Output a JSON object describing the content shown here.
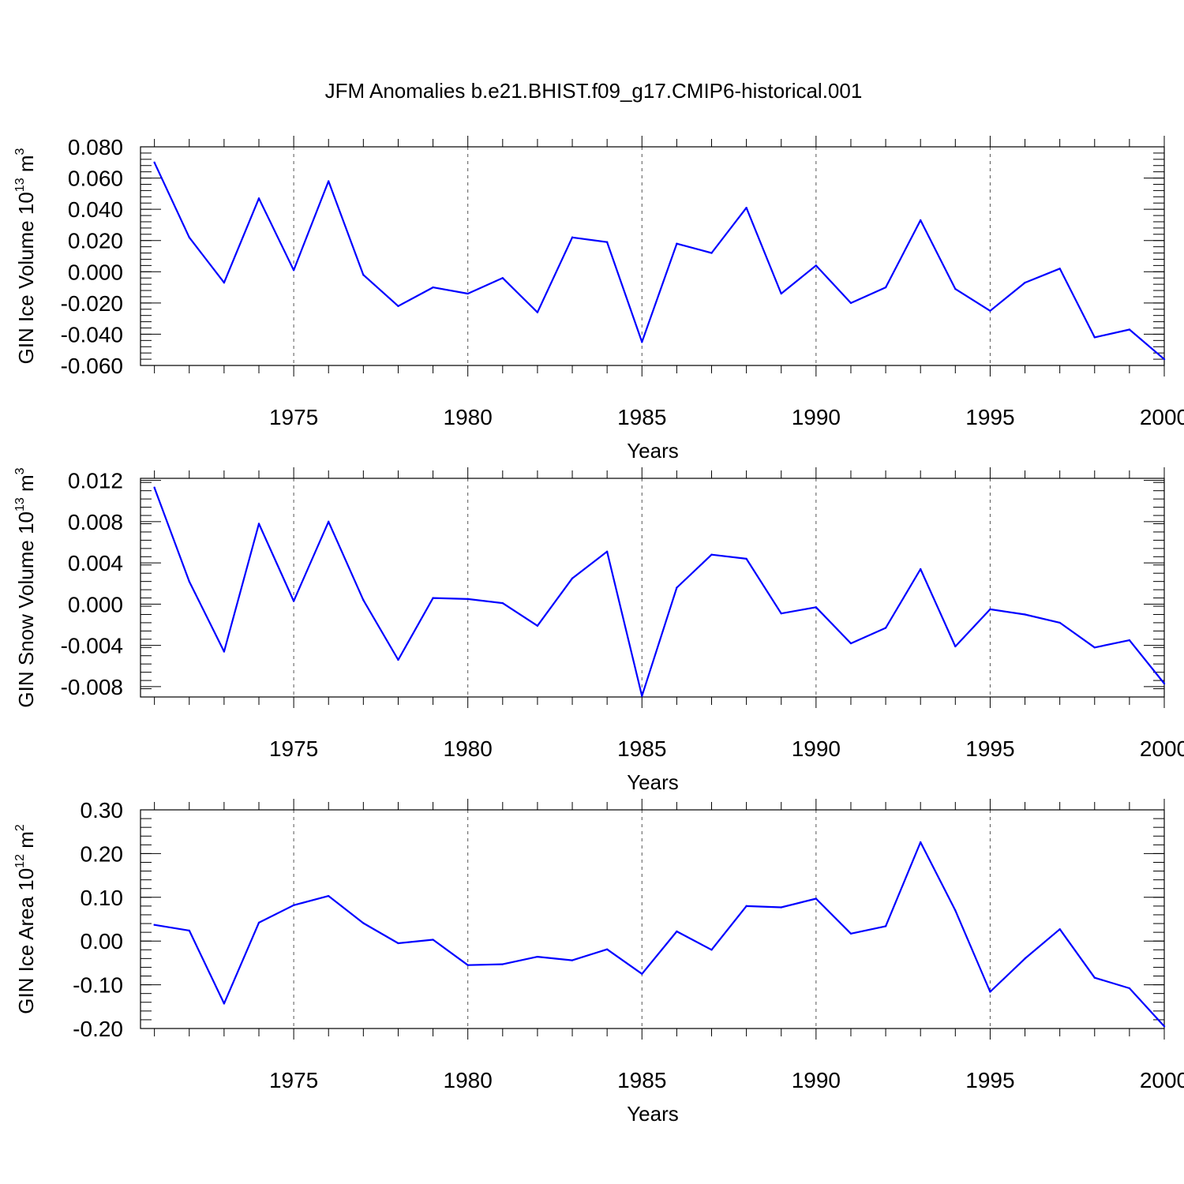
{
  "title": "JFM Anomalies b.e21.BHIST.f09_g17.CMIP6-historical.001",
  "chart_data": [
    {
      "type": "line",
      "xlabel": "Years",
      "ylabel": {
        "base": "GIN Ice Volume 10",
        "exp": "13",
        "unit": " m",
        "unit_exp": "3"
      },
      "xlim": [
        1970.6,
        2000
      ],
      "ylim": [
        -0.06,
        0.08
      ],
      "x_ticks": [
        1975,
        1980,
        1985,
        1990,
        1995,
        2000
      ],
      "y_ticks": [
        -0.06,
        -0.04,
        -0.02,
        0.0,
        0.02,
        0.04,
        0.06,
        0.08
      ],
      "y_tick_labels": [
        "-0.060",
        "-0.040",
        "-0.020",
        "0.000",
        "0.020",
        "0.040",
        "0.060",
        "0.080"
      ],
      "grid": "vertical dashed at labeled years",
      "color": "#0000ff",
      "x": [
        1971,
        1972,
        1973,
        1974,
        1975,
        1976,
        1977,
        1978,
        1979,
        1980,
        1981,
        1982,
        1983,
        1984,
        1985,
        1986,
        1987,
        1988,
        1989,
        1990,
        1991,
        1992,
        1993,
        1994,
        1995,
        1996,
        1997,
        1998,
        1999,
        2000
      ],
      "values": [
        0.07,
        0.022,
        -0.007,
        0.047,
        0.001,
        0.058,
        -0.002,
        -0.022,
        -0.01,
        -0.014,
        -0.004,
        -0.026,
        0.022,
        0.019,
        -0.045,
        0.018,
        0.012,
        0.041,
        -0.014,
        0.004,
        -0.02,
        -0.01,
        0.033,
        -0.011,
        -0.025,
        -0.007,
        0.002,
        -0.042,
        -0.037,
        -0.056
      ]
    },
    {
      "type": "line",
      "xlabel": "Years",
      "ylabel": {
        "base": "GIN Snow Volume 10",
        "exp": "13",
        "unit": " m",
        "unit_exp": "3"
      },
      "xlim": [
        1970.6,
        2000
      ],
      "ylim": [
        -0.009,
        0.0122
      ],
      "x_ticks": [
        1975,
        1980,
        1985,
        1990,
        1995,
        2000
      ],
      "y_ticks": [
        -0.008,
        -0.004,
        0.0,
        0.004,
        0.008,
        0.012
      ],
      "y_tick_labels": [
        "-0.008",
        "-0.004",
        "0.000",
        "0.004",
        "0.008",
        "0.012"
      ],
      "grid": "vertical dashed at labeled years",
      "color": "#0000ff",
      "x": [
        1971,
        1972,
        1973,
        1974,
        1975,
        1976,
        1977,
        1978,
        1979,
        1980,
        1981,
        1982,
        1983,
        1984,
        1985,
        1986,
        1987,
        1988,
        1989,
        1990,
        1991,
        1992,
        1993,
        1994,
        1995,
        1996,
        1997,
        1998,
        1999,
        2000
      ],
      "values": [
        0.0113,
        0.0022,
        -0.0046,
        0.0078,
        0.0003,
        0.008,
        0.0004,
        -0.0054,
        0.0006,
        0.0005,
        0.0001,
        -0.0021,
        0.0025,
        0.0051,
        -0.0089,
        0.0016,
        0.0048,
        0.0044,
        -0.0009,
        -0.0003,
        -0.0038,
        -0.0023,
        0.0034,
        -0.0041,
        -0.0005,
        -0.001,
        -0.0018,
        -0.0042,
        -0.0035,
        -0.0077
      ]
    },
    {
      "type": "line",
      "xlabel": "Years",
      "ylabel": {
        "base": "GIN Ice Area 10",
        "exp": "12",
        "unit": " m",
        "unit_exp": "2"
      },
      "xlim": [
        1970.6,
        2000
      ],
      "ylim": [
        -0.2,
        0.3
      ],
      "x_ticks": [
        1975,
        1980,
        1985,
        1990,
        1995,
        2000
      ],
      "y_ticks": [
        -0.2,
        -0.1,
        0.0,
        0.1,
        0.2,
        0.3
      ],
      "y_tick_labels": [
        "-0.20",
        "-0.10",
        "0.00",
        "0.10",
        "0.20",
        "0.30"
      ],
      "grid": "vertical dashed at labeled years",
      "color": "#0000ff",
      "x": [
        1971,
        1972,
        1973,
        1974,
        1975,
        1976,
        1977,
        1978,
        1979,
        1980,
        1981,
        1982,
        1983,
        1984,
        1985,
        1986,
        1987,
        1988,
        1989,
        1990,
        1991,
        1992,
        1993,
        1994,
        1995,
        1996,
        1997,
        1998,
        1999,
        2000
      ],
      "values": [
        0.037,
        0.024,
        -0.143,
        0.042,
        0.082,
        0.103,
        0.041,
        -0.005,
        0.003,
        -0.055,
        -0.053,
        -0.036,
        -0.044,
        -0.019,
        -0.075,
        0.022,
        -0.02,
        0.08,
        0.077,
        0.097,
        0.017,
        0.034,
        0.226,
        0.07,
        -0.116,
        -0.04,
        0.027,
        -0.084,
        -0.108,
        -0.195
      ]
    }
  ]
}
